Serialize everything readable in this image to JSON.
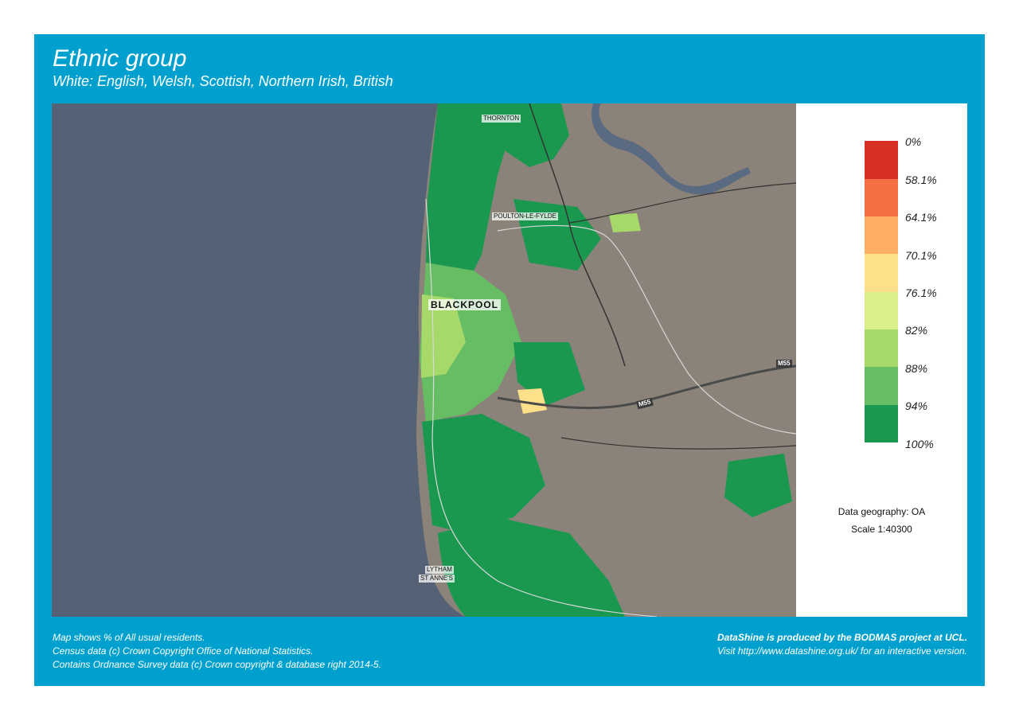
{
  "header": {
    "title": "Ethnic group",
    "subtitle": "White: English, Welsh, Scottish, Northern Irish, British"
  },
  "map": {
    "places": {
      "thornton": "THORNTON",
      "poulton": "POULTON-LE-FYLDE",
      "blackpool": "BLACKPOOL",
      "lytham_1": "LYTHAM",
      "lytham_2": "ST ANNE'S"
    },
    "roads": {
      "m55_east": "M55",
      "m55_mid": "M55"
    },
    "colors": {
      "sea": "#556275",
      "land": "#8b8379",
      "water": "#5a6a80"
    }
  },
  "legend": {
    "items": [
      {
        "label": "0%",
        "color": "#d73027"
      },
      {
        "label": "58.1%",
        "color": "#f46d43"
      },
      {
        "label": "64.1%",
        "color": "#fdae61"
      },
      {
        "label": "70.1%",
        "color": "#fee08b"
      },
      {
        "label": "76.1%",
        "color": "#d9ef8b"
      },
      {
        "label": "82%",
        "color": "#a6d96a"
      },
      {
        "label": "88%",
        "color": "#66bd63"
      },
      {
        "label": "94%",
        "color": "#1a9850"
      },
      {
        "label": "100%",
        "color": null
      }
    ],
    "geography": "Data geography: OA",
    "scale": "Scale 1:40300"
  },
  "footer": {
    "left": [
      "Map shows % of All usual residents.",
      "Census data (c) Crown Copyright Office of National Statistics.",
      "Contains Ordnance Survey data (c) Crown copyright & database right 2014-5."
    ],
    "right_bold": "DataShine is produced by the BODMAS project at UCL.",
    "right": "Visit http://www.datashine.org.uk/ for an interactive version."
  }
}
